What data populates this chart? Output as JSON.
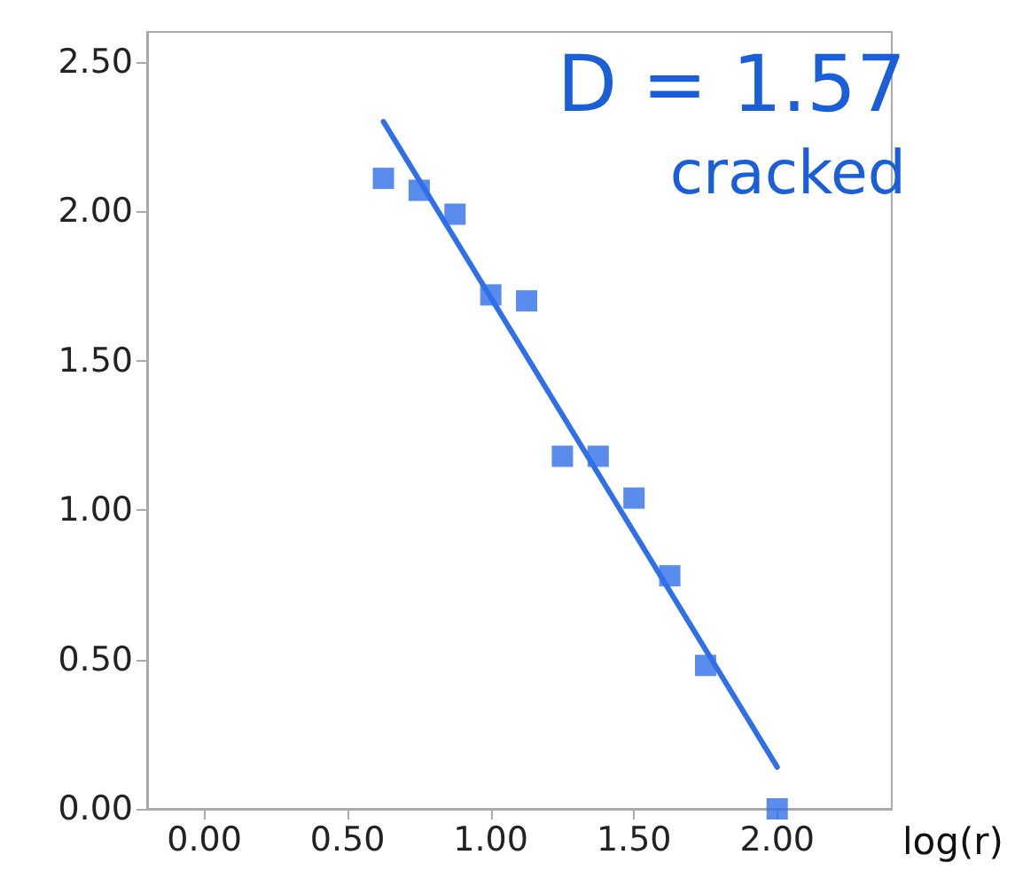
{
  "chart_data": {
    "type": "scatter",
    "xlabel": "log(r)",
    "annotations": [
      "D = 1.57",
      "cracked"
    ],
    "x": [
      0.625,
      0.75,
      0.875,
      1.0,
      1.125,
      1.25,
      1.375,
      1.5,
      1.625,
      1.75,
      2.0
    ],
    "series": [
      {
        "color": "#2f6fe8",
        "marker": "square",
        "values": [
          2.11,
          2.07,
          1.99,
          1.72,
          1.7,
          1.18,
          1.18,
          1.04,
          0.78,
          0.48,
          0.0
        ]
      },
      {
        "type": "line",
        "color": "#2f6fe8",
        "x": [
          0.625,
          2.0
        ],
        "values": [
          2.3,
          0.14
        ],
        "marker": "none",
        "line_style": "solid"
      }
    ],
    "xlim": [
      -0.2,
      2.4
    ],
    "ylim": [
      0,
      2.6
    ],
    "xticks": [
      {
        "value": 0,
        "label": "0.00"
      },
      {
        "value": 0.5,
        "label": "0.50"
      },
      {
        "value": 1,
        "label": "1.00"
      },
      {
        "value": 1.5,
        "label": "1.50"
      },
      {
        "value": 2,
        "label": "2.00"
      }
    ],
    "yticks": [
      {
        "value": 0,
        "label": "0.00"
      },
      {
        "value": 0.5,
        "label": "0.50"
      },
      {
        "value": 1,
        "label": "1.00"
      },
      {
        "value": 1.5,
        "label": "1.50"
      },
      {
        "value": 2,
        "label": "2.00"
      },
      {
        "value": 2.5,
        "label": "2.50"
      }
    ],
    "grid": false
  }
}
